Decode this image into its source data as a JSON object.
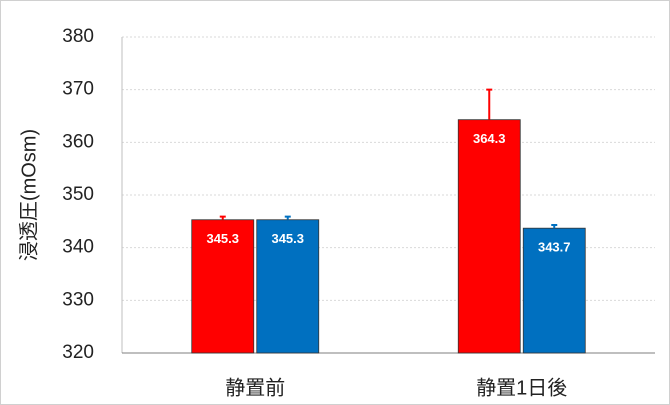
{
  "chart_data": {
    "type": "bar",
    "y_label": "浸透圧(mOsm)",
    "categories": [
      "静置前",
      "静置1日後"
    ],
    "series": [
      {
        "color": "#ff0000",
        "values": [
          345.3,
          364.3
        ],
        "errors": [
          0.6,
          5.7
        ]
      },
      {
        "color": "#0070c0",
        "values": [
          345.3,
          343.7
        ],
        "errors": [
          0.6,
          0.6
        ]
      }
    ],
    "ylim": [
      320,
      380
    ],
    "yticks": [
      320,
      330,
      340,
      350,
      360,
      370,
      380
    ],
    "grid": true
  }
}
